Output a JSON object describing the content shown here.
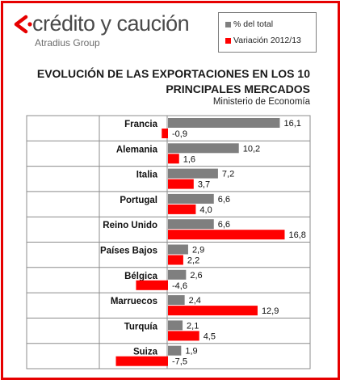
{
  "brand": {
    "name": "crédito y caución",
    "group": "Atradius Group",
    "mark_color": "#e60000"
  },
  "legend": {
    "items": [
      {
        "label": "% del total",
        "color": "#7f7f7f"
      },
      {
        "label": "Variación 2012/13",
        "color": "#ff0000"
      }
    ]
  },
  "title_line1": "EVOLUCIÓN DE LAS EXPORTACIONES EN LOS 10",
  "title_line2": "PRINCIPALES MERCADOS",
  "subtitle": "Ministerio de Economía",
  "chart_data": {
    "type": "bar",
    "orientation": "horizontal",
    "categories": [
      "Francia",
      "Alemania",
      "Italia",
      "Portugal",
      "Reino Unido",
      "Países Bajos",
      "Bélgica",
      "Marruecos",
      "Turquía",
      "Suiza"
    ],
    "series": [
      {
        "name": "% del total",
        "color": "#7f7f7f",
        "values": [
          16.1,
          10.2,
          7.2,
          6.6,
          6.6,
          2.9,
          2.6,
          2.4,
          2.1,
          1.9
        ],
        "labels": [
          "16,1",
          "10,2",
          "7,2",
          "6,6",
          "6,6",
          "2,9",
          "2,6",
          "2,4",
          "2,1",
          "1,9"
        ]
      },
      {
        "name": "Variación 2012/13",
        "color": "#ff0000",
        "values": [
          -0.9,
          1.6,
          3.7,
          4.0,
          16.8,
          2.2,
          -4.6,
          12.9,
          4.5,
          -7.5
        ],
        "labels": [
          "-0,9",
          "1,6",
          "3,7",
          "4,0",
          "16,8",
          "2,2",
          "-4,6",
          "12,9",
          "4,5",
          "-7,5"
        ]
      }
    ],
    "grid": true,
    "legend_position": "top-right"
  }
}
